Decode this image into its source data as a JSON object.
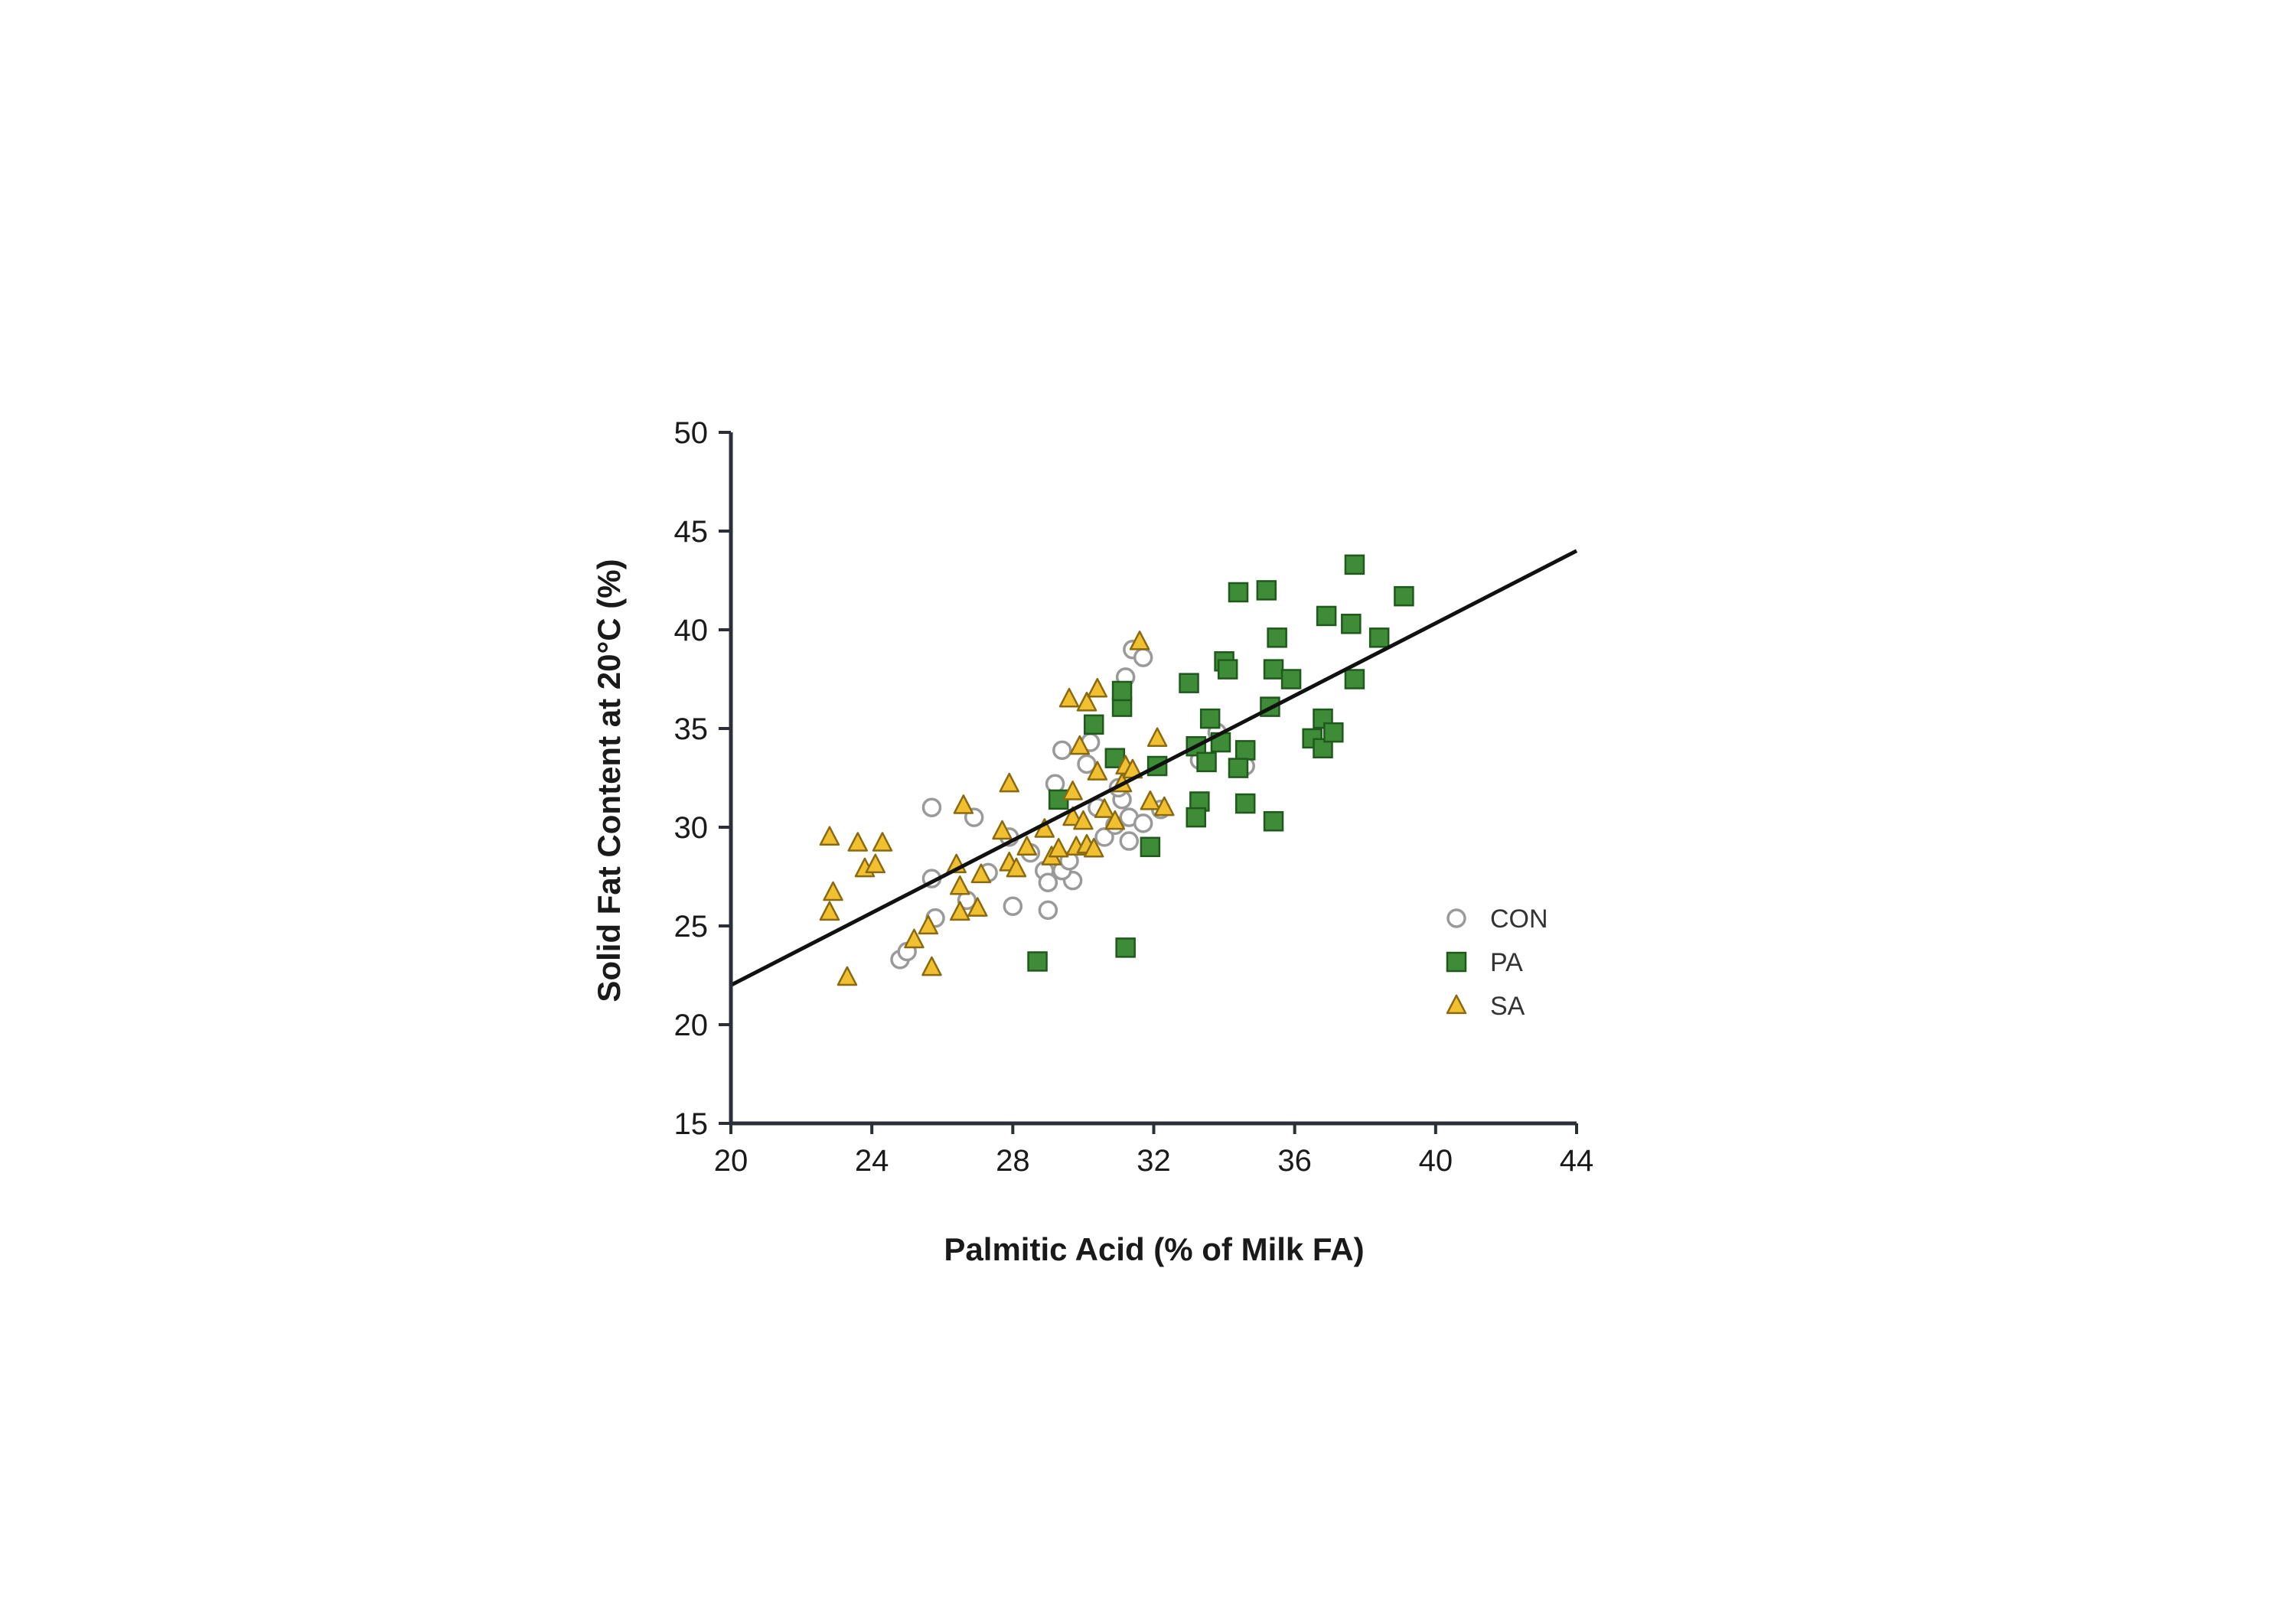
{
  "chart_data": {
    "type": "scatter",
    "xlabel": "Palmitic Acid (% of Milk FA)",
    "ylabel": "Solid Fat Content at 20°C (%)",
    "xlim": [
      20,
      44
    ],
    "ylim": [
      15,
      50
    ],
    "xticks": [
      "20",
      "24",
      "28",
      "32",
      "36",
      "40",
      "44"
    ],
    "yticks": [
      "15",
      "20",
      "25",
      "30",
      "35",
      "40",
      "45",
      "50"
    ],
    "grid": false,
    "legend_position": "bottom-right",
    "trendline": {
      "x": [
        20,
        44
      ],
      "y": [
        22,
        44
      ]
    },
    "series": [
      {
        "name": "CON",
        "marker": "circle",
        "fill": "#ffffff",
        "stroke": "#9a9a9a",
        "points": [
          [
            25.7,
            31
          ],
          [
            26.9,
            30.5
          ],
          [
            25.7,
            27.4
          ],
          [
            24.8,
            23.3
          ],
          [
            25,
            23.7
          ],
          [
            25.8,
            25.4
          ],
          [
            26.7,
            26.3
          ],
          [
            27.3,
            27.7
          ],
          [
            28,
            26
          ],
          [
            27.9,
            29.5
          ],
          [
            28.5,
            28.7
          ],
          [
            28.9,
            27.8
          ],
          [
            29,
            27.2
          ],
          [
            29,
            25.8
          ],
          [
            29.7,
            27.3
          ],
          [
            29.4,
            27.8
          ],
          [
            29.6,
            28.3
          ],
          [
            29.2,
            32.2
          ],
          [
            29.4,
            33.9
          ],
          [
            30.1,
            33.2
          ],
          [
            30.2,
            34.3
          ],
          [
            30.4,
            31
          ],
          [
            30.6,
            29.5
          ],
          [
            30.9,
            30.1
          ],
          [
            31.1,
            31.4
          ],
          [
            31.3,
            30.5
          ],
          [
            31.3,
            29.3
          ],
          [
            31.7,
            30.2
          ],
          [
            32.2,
            30.9
          ],
          [
            31,
            32
          ],
          [
            31.2,
            37.6
          ],
          [
            31.4,
            39
          ],
          [
            31.7,
            38.6
          ],
          [
            33.8,
            34.8
          ],
          [
            33.3,
            33.4
          ],
          [
            34.6,
            33.1
          ]
        ]
      },
      {
        "name": "PA",
        "marker": "square",
        "fill": "#3e8c37",
        "stroke": "#1f5a1c",
        "points": [
          [
            28.7,
            23.2
          ],
          [
            31.2,
            23.9
          ],
          [
            29.3,
            31.4
          ],
          [
            30.3,
            35.2
          ],
          [
            30.9,
            33.5
          ],
          [
            31.1,
            36.1
          ],
          [
            31.1,
            36.9
          ],
          [
            31.9,
            29
          ],
          [
            32.1,
            33.1
          ],
          [
            33,
            37.3
          ],
          [
            33.2,
            34.1
          ],
          [
            33.3,
            31.3
          ],
          [
            33.2,
            30.5
          ],
          [
            33.5,
            33.3
          ],
          [
            33.6,
            35.5
          ],
          [
            33.9,
            34.3
          ],
          [
            34,
            38.4
          ],
          [
            34.1,
            38
          ],
          [
            34.4,
            41.9
          ],
          [
            34.6,
            31.2
          ],
          [
            34.6,
            33.9
          ],
          [
            34.4,
            33
          ],
          [
            35.2,
            42
          ],
          [
            35.3,
            36.1
          ],
          [
            35.4,
            38
          ],
          [
            35.5,
            39.6
          ],
          [
            35.4,
            30.3
          ],
          [
            35.9,
            37.5
          ],
          [
            36.5,
            34.5
          ],
          [
            36.8,
            35.5
          ],
          [
            36.9,
            40.7
          ],
          [
            36.8,
            34
          ],
          [
            37.1,
            34.8
          ],
          [
            37.6,
            40.3
          ],
          [
            37.7,
            43.3
          ],
          [
            37.7,
            37.5
          ],
          [
            38.4,
            39.6
          ],
          [
            39.1,
            41.7
          ]
        ]
      },
      {
        "name": "SA",
        "marker": "triangle",
        "fill": "#f0c030",
        "stroke": "#8a6a10",
        "points": [
          [
            22.8,
            29.5
          ],
          [
            22.8,
            25.7
          ],
          [
            22.9,
            26.7
          ],
          [
            23.3,
            22.4
          ],
          [
            23.6,
            29.2
          ],
          [
            23.8,
            27.9
          ],
          [
            24.1,
            28.1
          ],
          [
            24.3,
            29.2
          ],
          [
            25.2,
            24.3
          ],
          [
            25.6,
            25
          ],
          [
            25.7,
            22.9
          ],
          [
            26.4,
            28.1
          ],
          [
            26.5,
            27
          ],
          [
            26.5,
            25.7
          ],
          [
            26.6,
            31.1
          ],
          [
            27,
            25.9
          ],
          [
            27.1,
            27.6
          ],
          [
            27.7,
            29.8
          ],
          [
            27.9,
            32.2
          ],
          [
            27.9,
            28.2
          ],
          [
            28.1,
            27.9
          ],
          [
            28.4,
            29
          ],
          [
            28.9,
            29.9
          ],
          [
            29.1,
            28.5
          ],
          [
            29.3,
            28.9
          ],
          [
            29.6,
            36.5
          ],
          [
            29.7,
            31.8
          ],
          [
            29.7,
            30.5
          ],
          [
            29.8,
            29
          ],
          [
            29.9,
            34.1
          ],
          [
            30,
            30.3
          ],
          [
            30.1,
            29.1
          ],
          [
            30.1,
            36.3
          ],
          [
            30.3,
            28.9
          ],
          [
            30.4,
            37
          ],
          [
            30.4,
            32.8
          ],
          [
            30.6,
            30.9
          ],
          [
            30.9,
            30.3
          ],
          [
            31.1,
            32.2
          ],
          [
            31.2,
            33.1
          ],
          [
            31.4,
            32.9
          ],
          [
            31.6,
            39.4
          ],
          [
            31.9,
            31.3
          ],
          [
            32.1,
            34.5
          ],
          [
            32.3,
            31
          ]
        ]
      }
    ]
  }
}
